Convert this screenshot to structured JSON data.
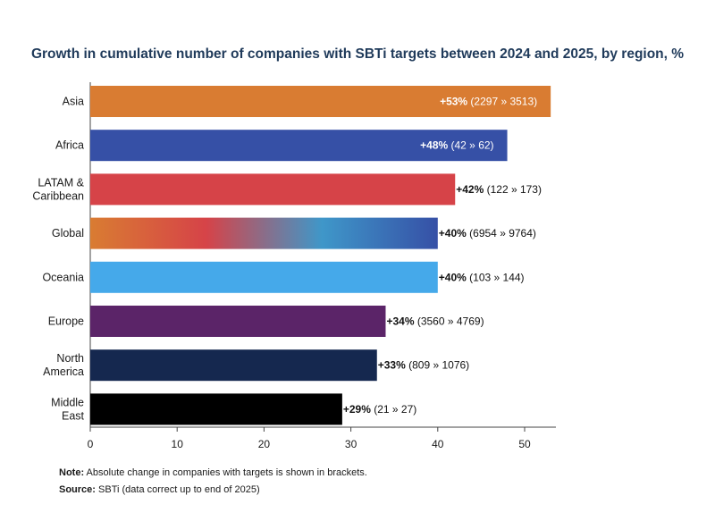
{
  "chart_data": {
    "type": "bar",
    "orientation": "horizontal",
    "title": "Growth in cumulative number of companies with SBTi targets between 2024 and 2025, by region, %",
    "xlabel": "",
    "ylabel": "",
    "xlim": [
      0,
      54
    ],
    "xticks": [
      0,
      10,
      20,
      30,
      40,
      50
    ],
    "grid": false,
    "categories": [
      [
        "Asia"
      ],
      [
        "Africa"
      ],
      [
        "LATAM &",
        "Caribbean"
      ],
      [
        "Global"
      ],
      [
        "Oceania"
      ],
      [
        "Europe"
      ],
      [
        "North",
        "America"
      ],
      [
        "Middle",
        "East"
      ]
    ],
    "values": [
      53,
      48,
      42,
      40,
      40,
      34,
      33,
      29
    ],
    "value_labels": [
      "+53%",
      "+48%",
      "+42%",
      "+40%",
      "+40%",
      "+34%",
      "+33%",
      "+29%"
    ],
    "bracket_labels": [
      "(2297 » 3513)",
      "(42 » 62)",
      "(122 » 173)",
      "(6954 » 9764)",
      "(103 » 144)",
      "(3560 » 4769)",
      "(809 » 1076)",
      "(21 » 27)"
    ],
    "label_inside": [
      true,
      true,
      false,
      false,
      false,
      false,
      false,
      false
    ],
    "colors": [
      "#d97c32",
      "#3650a6",
      "#d64348",
      "gradient",
      "#45a9ea",
      "#5b2468",
      "#15284f",
      "#000000"
    ],
    "gradient_stops": [
      "#d97c32",
      "#d64348",
      "#3f97c9",
      "#3650a6"
    ]
  },
  "footer": {
    "note_label": "Note:",
    "note_text": " Absolute change in companies with targets is shown in brackets.",
    "source_label": "Source:",
    "source_text": " SBTi (data correct up to end of 2025)"
  }
}
